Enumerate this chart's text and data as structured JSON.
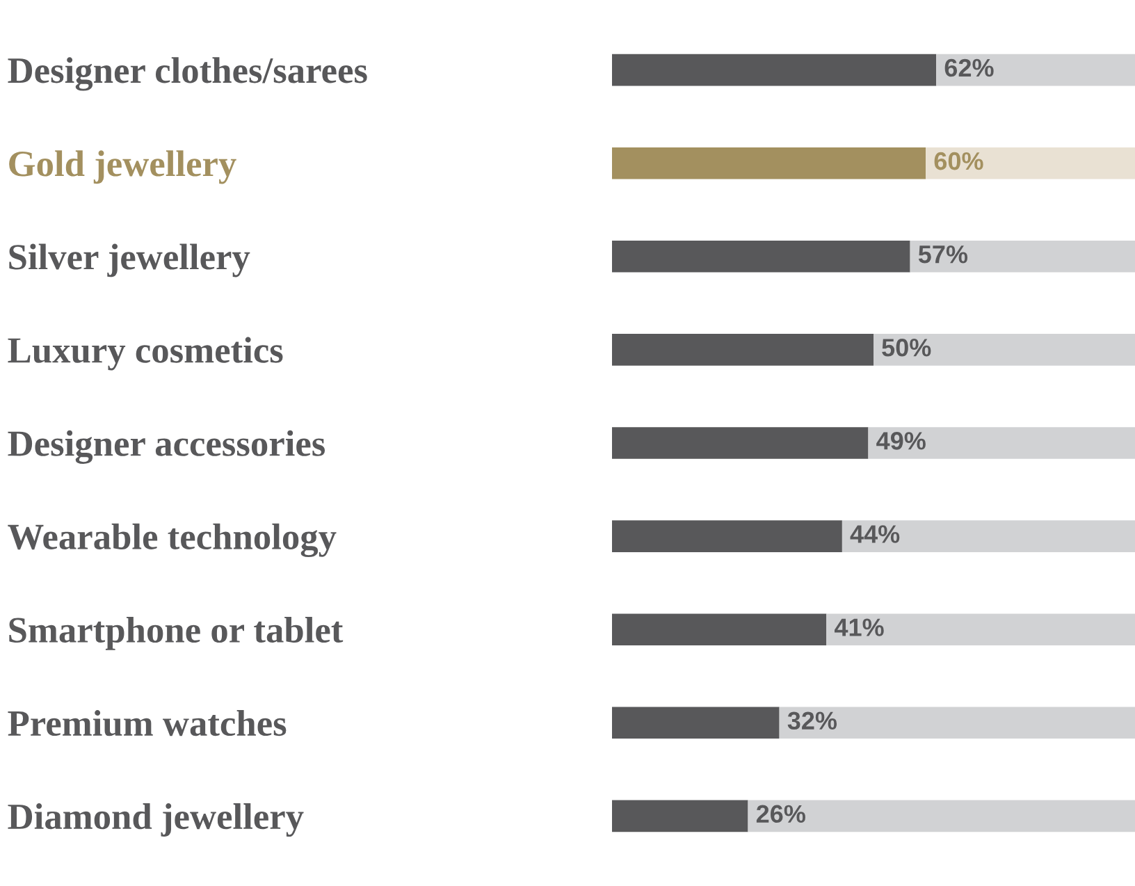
{
  "chart_data": {
    "type": "bar",
    "orientation": "horizontal",
    "stacked": true,
    "categories": [
      "Designer clothes/sarees",
      "Gold jewellery",
      "Silver jewellery",
      "Luxury cosmetics",
      "Designer accessories",
      "Wearable technology",
      "Smartphone or tablet",
      "Premium watches",
      "Diamond jewellery"
    ],
    "series": [
      {
        "colors": [
          "#58585a",
          "#a3905f",
          "#58585a",
          "#58585a",
          "#58585a",
          "#58585a",
          "#58585a",
          "#58585a",
          "#58585a"
        ],
        "values": [
          62,
          60,
          57,
          50,
          49,
          44,
          41,
          32,
          26
        ],
        "value_labels": [
          "62%",
          "60%",
          "57%",
          "50%",
          "49%",
          "44%",
          "41%",
          "32%",
          "26%"
        ]
      },
      {
        "colors": [
          "#d1d2d4",
          "#e9e1d3",
          "#d1d2d4",
          "#d1d2d4",
          "#d1d2d4",
          "#d1d2d4",
          "#d1d2d4",
          "#d1d2d4",
          "#d1d2d4"
        ],
        "values": [
          38,
          40,
          43,
          50,
          51,
          56,
          59,
          68,
          74
        ]
      }
    ],
    "xlim": [
      0,
      100
    ],
    "tick_labels": "y",
    "grid": false,
    "legend": false
  }
}
